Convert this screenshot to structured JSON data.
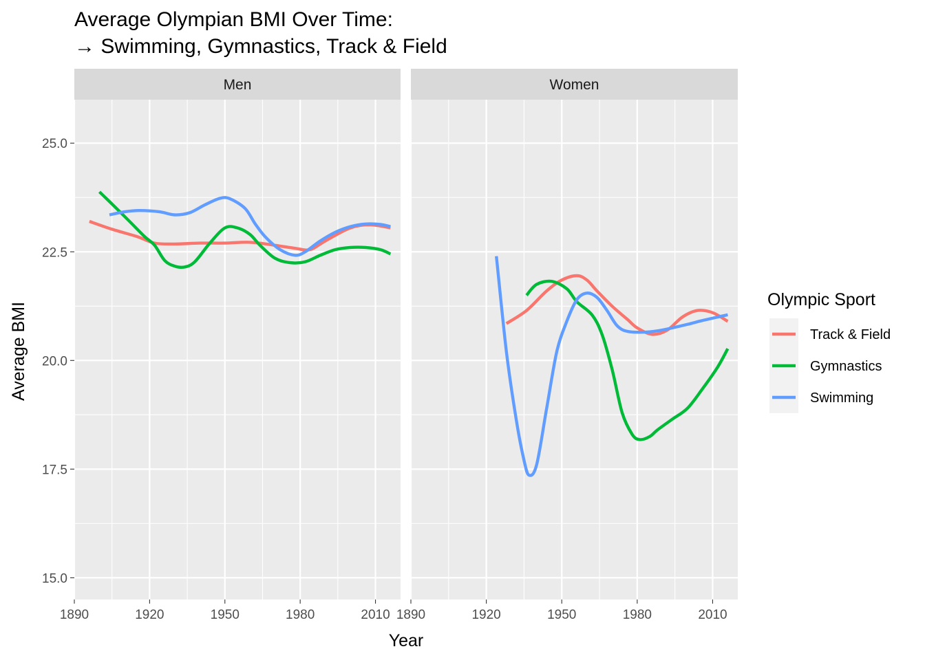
{
  "chart_data": {
    "type": "line",
    "title_line1": "Average Olympian BMI Over Time:",
    "title_line2": "→ Swimming, Gymnastics, Track & Field",
    "xlabel": "Year",
    "ylabel": "Average BMI",
    "xlim": [
      1890,
      2020
    ],
    "ylim": [
      14.5,
      26
    ],
    "x_ticks": [
      1890,
      1920,
      1950,
      1980,
      2010
    ],
    "x_tick_labels": [
      "1890",
      "1920",
      "1950",
      "1980",
      "2010"
    ],
    "y_ticks": [
      15,
      17.5,
      20,
      22.5,
      25
    ],
    "y_tick_labels": [
      "15.0",
      "17.5",
      "20.0",
      "22.5",
      "25.0"
    ],
    "legend": {
      "title": "Olympic Sport",
      "items": [
        {
          "label": "Track & Field",
          "color": "#F8766D"
        },
        {
          "label": "Gymnastics",
          "color": "#00BA38"
        },
        {
          "label": "Swimming",
          "color": "#619CFF"
        }
      ]
    },
    "panels": [
      {
        "label": "Men",
        "series": [
          {
            "name": "Track & Field",
            "color": "#F8766D",
            "x": [
              1896,
              1905,
              1915,
              1922,
              1930,
              1940,
              1950,
              1960,
              1970,
              1978,
              1984,
              1990,
              2000,
              2008,
              2016
            ],
            "y": [
              23.2,
              23.02,
              22.85,
              22.7,
              22.68,
              22.7,
              22.7,
              22.72,
              22.65,
              22.58,
              22.55,
              22.75,
              23.05,
              23.12,
              23.05
            ]
          },
          {
            "name": "Gymnastics",
            "color": "#00BA38",
            "x": [
              1900,
              1905,
              1912,
              1918,
              1922,
              1926,
              1930,
              1934,
              1938,
              1944,
              1950,
              1955,
              1960,
              1964,
              1970,
              1976,
              1982,
              1988,
              1994,
              2000,
              2006,
              2012,
              2016
            ],
            "y": [
              23.88,
              23.6,
              23.2,
              22.85,
              22.65,
              22.3,
              22.17,
              22.15,
              22.27,
              22.7,
              23.05,
              23.05,
              22.9,
              22.65,
              22.35,
              22.25,
              22.27,
              22.42,
              22.55,
              22.6,
              22.6,
              22.55,
              22.45
            ]
          },
          {
            "name": "Swimming",
            "color": "#619CFF",
            "x": [
              1904,
              1910,
              1916,
              1924,
              1930,
              1936,
              1942,
              1948,
              1952,
              1958,
              1962,
              1966,
              1972,
              1978,
              1982,
              1988,
              1994,
              2000,
              2006,
              2012,
              2016
            ],
            "y": [
              23.35,
              23.42,
              23.45,
              23.42,
              23.35,
              23.4,
              23.58,
              23.73,
              23.72,
              23.5,
              23.15,
              22.85,
              22.55,
              22.42,
              22.5,
              22.75,
              22.95,
              23.08,
              23.14,
              23.13,
              23.08
            ]
          }
        ]
      },
      {
        "label": "Women",
        "series": [
          {
            "name": "Track & Field",
            "color": "#F8766D",
            "x": [
              1928,
              1936,
              1944,
              1950,
              1956,
              1960,
              1964,
              1970,
              1976,
              1980,
              1986,
              1992,
              1998,
              2004,
              2010,
              2016
            ],
            "y": [
              20.85,
              21.15,
              21.6,
              21.85,
              21.95,
              21.85,
              21.6,
              21.25,
              20.95,
              20.75,
              20.6,
              20.7,
              21.0,
              21.15,
              21.1,
              20.9
            ]
          },
          {
            "name": "Gymnastics",
            "color": "#00BA38",
            "x": [
              1936,
              1940,
              1946,
              1952,
              1956,
              1962,
              1966,
              1970,
              1974,
              1978,
              1981,
              1985,
              1988,
              1994,
              2000,
              2006,
              2012,
              2016
            ],
            "y": [
              21.5,
              21.75,
              21.82,
              21.65,
              21.35,
              21.05,
              20.6,
              19.8,
              18.8,
              18.3,
              18.18,
              18.25,
              18.4,
              18.65,
              18.9,
              19.35,
              19.85,
              20.27
            ]
          },
          {
            "name": "Swimming",
            "color": "#619CFF",
            "x": [
              1924,
              1928,
              1932,
              1935,
              1937,
              1940,
              1944,
              1948,
              1952,
              1956,
              1960,
              1964,
              1968,
              1972,
              1976,
              1982,
              1988,
              1994,
              2000,
              2006,
              2012,
              2016
            ],
            "y": [
              22.4,
              20.2,
              18.6,
              17.7,
              17.36,
              17.6,
              18.9,
              20.2,
              20.9,
              21.4,
              21.55,
              21.45,
              21.15,
              20.8,
              20.67,
              20.65,
              20.68,
              20.75,
              20.83,
              20.92,
              21.0,
              21.05
            ]
          }
        ]
      }
    ]
  }
}
